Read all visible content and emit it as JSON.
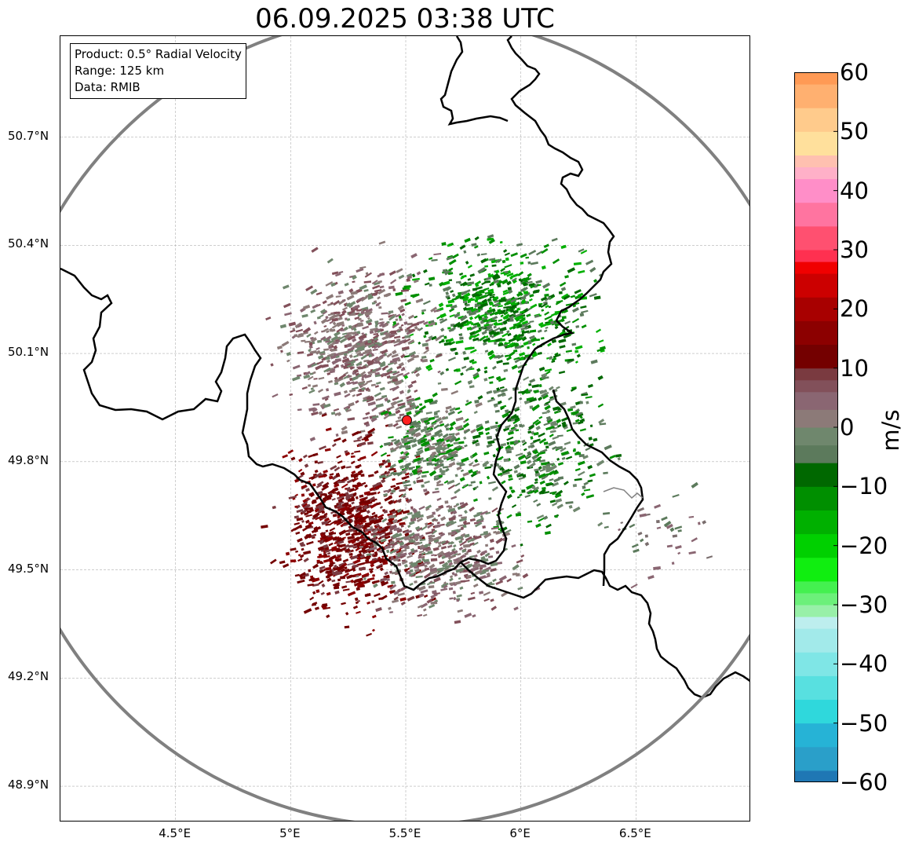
{
  "title": "06.09.2025 03:38 UTC",
  "info_box": {
    "product": "Product: 0.5° Radial Velocity",
    "range": "Range: 125 km",
    "data": "Data: RMIB"
  },
  "map": {
    "lon_range": [
      4.0,
      7.0
    ],
    "lat_range": [
      48.8,
      50.98
    ],
    "lat_ticks": [
      {
        "value": 50.7,
        "label": "50.7°N"
      },
      {
        "value": 50.4,
        "label": "50.4°N"
      },
      {
        "value": 50.1,
        "label": "50.1°N"
      },
      {
        "value": 49.8,
        "label": "49.8°N"
      },
      {
        "value": 49.5,
        "label": "49.5°N"
      },
      {
        "value": 49.2,
        "label": "49.2°N"
      },
      {
        "value": 48.9,
        "label": "48.9°N"
      }
    ],
    "lon_ticks": [
      {
        "value": 4.5,
        "label": "4.5°E"
      },
      {
        "value": 5.0,
        "label": "5°E"
      },
      {
        "value": 5.5,
        "label": "5.5°E"
      },
      {
        "value": 6.0,
        "label": "6°E"
      },
      {
        "value": 6.5,
        "label": "6.5°E"
      }
    ],
    "radar_site": {
      "lon": 5.505,
      "lat": 49.915
    },
    "range_ring_km": 125,
    "colors": {
      "ring": "#808080",
      "border": "#000000",
      "site": "#ff2020",
      "grid": "#b0b0b0"
    }
  },
  "colorbar": {
    "unit": "m/s",
    "min": -60,
    "max": 60,
    "ticks": [
      {
        "value": 60,
        "label": "60"
      },
      {
        "value": 50,
        "label": "50"
      },
      {
        "value": 40,
        "label": "40"
      },
      {
        "value": 30,
        "label": "30"
      },
      {
        "value": 20,
        "label": "20"
      },
      {
        "value": 10,
        "label": "10"
      },
      {
        "value": 0,
        "label": "0"
      },
      {
        "value": -10,
        "label": "−10"
      },
      {
        "value": -20,
        "label": "−20"
      },
      {
        "value": -30,
        "label": "−30"
      },
      {
        "value": -40,
        "label": "−40"
      },
      {
        "value": -50,
        "label": "−50"
      },
      {
        "value": -60,
        "label": "−60"
      }
    ],
    "stops": [
      {
        "from": -60,
        "to": -58,
        "color": "#1f77b4"
      },
      {
        "from": -58,
        "to": -54,
        "color": "#2a9fc9"
      },
      {
        "from": -54,
        "to": -50,
        "color": "#26b3d6"
      },
      {
        "from": -50,
        "to": -46,
        "color": "#2fd8dc"
      },
      {
        "from": -46,
        "to": -42,
        "color": "#58e0e0"
      },
      {
        "from": -42,
        "to": -38,
        "color": "#7fe6e6"
      },
      {
        "from": -38,
        "to": -34,
        "color": "#a2eaea"
      },
      {
        "from": -34,
        "to": -32,
        "color": "#bdeeee"
      },
      {
        "from": -32,
        "to": -30,
        "color": "#98f0a8"
      },
      {
        "from": -30,
        "to": -28,
        "color": "#6cf07a"
      },
      {
        "from": -28,
        "to": -26,
        "color": "#44f050"
      },
      {
        "from": -26,
        "to": -22,
        "color": "#10ee10"
      },
      {
        "from": -22,
        "to": -18,
        "color": "#00d000"
      },
      {
        "from": -18,
        "to": -14,
        "color": "#00b000"
      },
      {
        "from": -14,
        "to": -10,
        "color": "#008f00"
      },
      {
        "from": -10,
        "to": -6,
        "color": "#006800"
      },
      {
        "from": -6,
        "to": -3,
        "color": "#5c7a5c"
      },
      {
        "from": -3,
        "to": 0,
        "color": "#6f876d"
      },
      {
        "from": 0,
        "to": 3,
        "color": "#8c7a78"
      },
      {
        "from": 3,
        "to": 6,
        "color": "#8a6672"
      },
      {
        "from": 6,
        "to": 8,
        "color": "#82505a"
      },
      {
        "from": 8,
        "to": 10,
        "color": "#7a3a40"
      },
      {
        "from": 10,
        "to": 14,
        "color": "#740000"
      },
      {
        "from": 14,
        "to": 18,
        "color": "#8c0000"
      },
      {
        "from": 18,
        "to": 22,
        "color": "#a80000"
      },
      {
        "from": 22,
        "to": 26,
        "color": "#cc0000"
      },
      {
        "from": 26,
        "to": 28,
        "color": "#f00000"
      },
      {
        "from": 28,
        "to": 30,
        "color": "#ff3050"
      },
      {
        "from": 30,
        "to": 34,
        "color": "#ff5070"
      },
      {
        "from": 34,
        "to": 38,
        "color": "#ff74a0"
      },
      {
        "from": 38,
        "to": 42,
        "color": "#ff8ec8"
      },
      {
        "from": 42,
        "to": 44,
        "color": "#ffb0c8"
      },
      {
        "from": 44,
        "to": 46,
        "color": "#ffc0b0"
      },
      {
        "from": 46,
        "to": 50,
        "color": "#ffe09c"
      },
      {
        "from": 50,
        "to": 54,
        "color": "#ffcb8c"
      },
      {
        "from": 54,
        "to": 58,
        "color": "#ffb070"
      },
      {
        "from": 58,
        "to": 60,
        "color": "#ff9a55"
      }
    ]
  },
  "echo_regions": [
    {
      "name": "inbound-green-northeast",
      "lon": 5.9,
      "lat": 50.22,
      "spread_lon": 0.33,
      "spread_lat": 0.16,
      "count": 650,
      "colors": [
        "#008f00",
        "#006800",
        "#00b000",
        "#5c7a5c"
      ]
    },
    {
      "name": "inbound-green-east",
      "lon": 6.05,
      "lat": 49.85,
      "spread_lon": 0.28,
      "spread_lat": 0.2,
      "count": 420,
      "colors": [
        "#006800",
        "#008f00",
        "#5c7a5c",
        "#6f876d"
      ]
    },
    {
      "name": "near-zero-northwest",
      "lon": 5.3,
      "lat": 50.12,
      "spread_lon": 0.28,
      "spread_lat": 0.2,
      "count": 700,
      "colors": [
        "#8c7a78",
        "#8a6672",
        "#6f876d",
        "#82505a"
      ]
    },
    {
      "name": "outbound-red-southwest",
      "lon": 5.25,
      "lat": 49.62,
      "spread_lon": 0.25,
      "spread_lat": 0.2,
      "count": 800,
      "colors": [
        "#740000",
        "#7a3a40",
        "#8c0000",
        "#740000"
      ]
    },
    {
      "name": "near-zero-south",
      "lon": 5.65,
      "lat": 49.55,
      "spread_lon": 0.28,
      "spread_lat": 0.14,
      "count": 500,
      "colors": [
        "#8a6672",
        "#8c7a78",
        "#6f876d",
        "#82505a"
      ]
    },
    {
      "name": "mixed-center",
      "lon": 5.6,
      "lat": 49.85,
      "spread_lon": 0.18,
      "spread_lat": 0.12,
      "count": 300,
      "colors": [
        "#6f876d",
        "#8c7a78",
        "#5c7a5c",
        "#008f00"
      ]
    },
    {
      "name": "scatter-southeast",
      "lon": 6.6,
      "lat": 49.6,
      "spread_lon": 0.2,
      "spread_lat": 0.1,
      "count": 40,
      "colors": [
        "#7a6e6e",
        "#8a6672",
        "#5c7a5c"
      ]
    }
  ]
}
